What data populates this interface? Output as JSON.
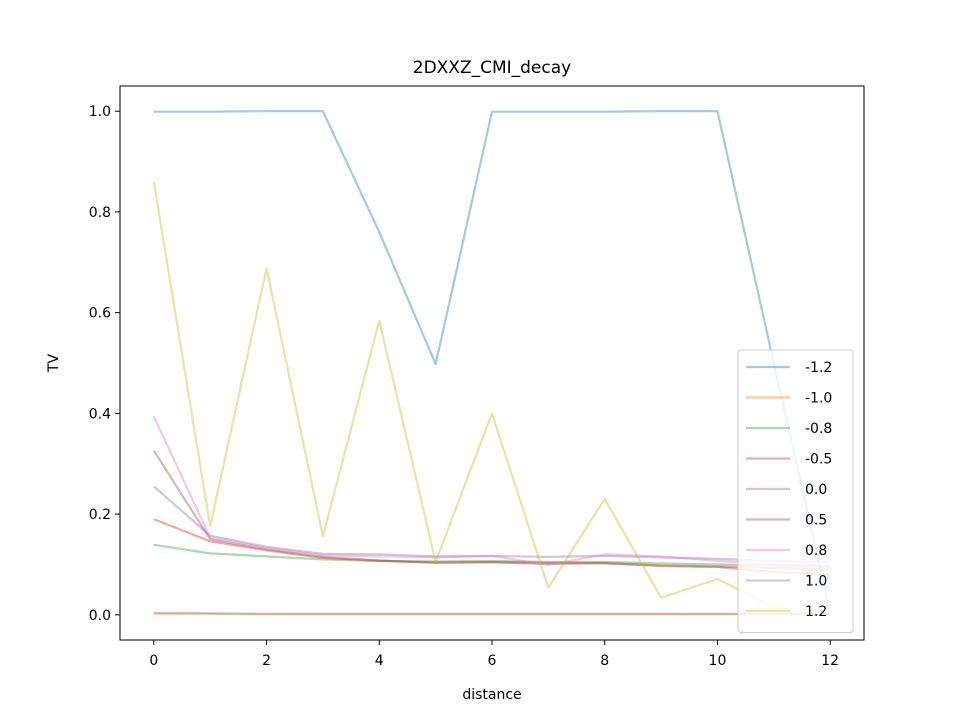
{
  "chart_data": {
    "type": "line",
    "title": "2DXXZ_CMI_decay",
    "xlabel": "distance",
    "ylabel": "TV",
    "xlim": [
      -0.6,
      12.6
    ],
    "ylim": [
      -0.05,
      1.05
    ],
    "x_ticks": [
      0,
      2,
      4,
      6,
      8,
      10,
      12
    ],
    "y_ticks": [
      0.0,
      0.2,
      0.4,
      0.6,
      0.8,
      1.0
    ],
    "x_tick_labels": [
      "0",
      "2",
      "4",
      "6",
      "8",
      "10",
      "12"
    ],
    "y_tick_labels": [
      "0.0",
      "0.2",
      "0.4",
      "0.6",
      "0.8",
      "1.0"
    ],
    "grid": false,
    "legend_position": "lower-right",
    "line_opacity": 0.4,
    "x": [
      0,
      1,
      2,
      3,
      4,
      5,
      6,
      7,
      8,
      9,
      10,
      11,
      12
    ],
    "series": [
      {
        "name": "-1.2",
        "color": "#1f77b4",
        "values": [
          0.999,
          0.999,
          1.0,
          1.0,
          0.76,
          0.498,
          0.999,
          0.999,
          0.999,
          1.0,
          1.0,
          0.5,
          0.003
        ]
      },
      {
        "name": "-1.0",
        "color": "#ff7f0e",
        "values": [
          0.002,
          0.002,
          0.001,
          0.001,
          0.001,
          0.001,
          0.001,
          0.001,
          0.001,
          0.001,
          0.001,
          0.001,
          0.001
        ]
      },
      {
        "name": "-0.8",
        "color": "#2ca02c",
        "values": [
          0.139,
          0.122,
          0.116,
          0.11,
          0.107,
          0.106,
          0.107,
          0.105,
          0.105,
          0.102,
          0.1,
          0.098,
          0.095
        ]
      },
      {
        "name": "-0.5",
        "color": "#d62728",
        "values": [
          0.19,
          0.146,
          0.128,
          0.113,
          0.107,
          0.104,
          0.105,
          0.103,
          0.103,
          0.098,
          0.096,
          0.093,
          0.09
        ]
      },
      {
        "name": "0.0",
        "color": "#9467bd",
        "values": [
          0.255,
          0.157,
          0.135,
          0.121,
          0.12,
          0.116,
          0.117,
          0.115,
          0.117,
          0.114,
          0.111,
          0.107,
          0.105
        ]
      },
      {
        "name": "0.5",
        "color": "#8c564b",
        "values": [
          0.326,
          0.15,
          0.13,
          0.115,
          0.108,
          0.103,
          0.104,
          0.101,
          0.102,
          0.097,
          0.095,
          0.085,
          0.08
        ]
      },
      {
        "name": "0.8",
        "color": "#e377c2",
        "values": [
          0.394,
          0.153,
          0.133,
          0.118,
          0.116,
          0.114,
          0.117,
          0.099,
          0.12,
          0.116,
          0.107,
          0.1,
          0.097
        ]
      },
      {
        "name": "1.0",
        "color": "#7f7f7f",
        "values": [
          0.004,
          0.003,
          0.002,
          0.002,
          0.002,
          0.002,
          0.002,
          0.002,
          0.002,
          0.002,
          0.002,
          0.002,
          0.002
        ]
      },
      {
        "name": "1.2",
        "color": "#bcbd22",
        "values": [
          0.86,
          0.176,
          0.688,
          0.156,
          0.584,
          0.105,
          0.4,
          0.054,
          0.23,
          0.034,
          0.071,
          0.015,
          0.003
        ]
      }
    ]
  }
}
